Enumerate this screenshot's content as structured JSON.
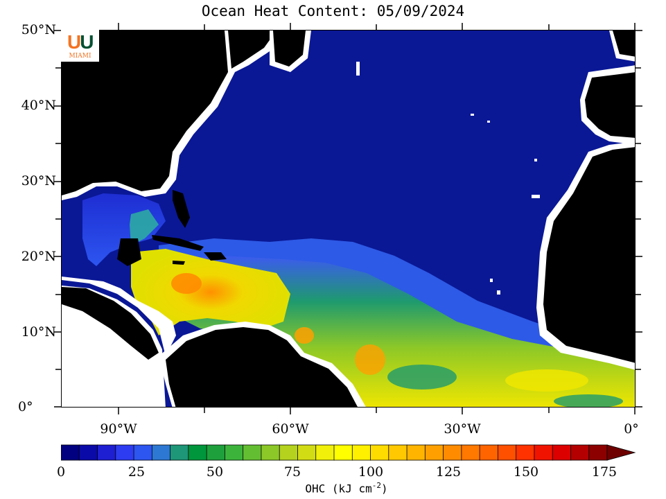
{
  "title": "Ocean Heat Content: 05/09/2024",
  "logo": {
    "letters": "U",
    "text": "MIAMI"
  },
  "lat_labels": [
    "50°N",
    "40°N",
    "30°N",
    "20°N",
    "10°N",
    "0°"
  ],
  "lon_labels": [
    "90°W",
    "60°W",
    "30°W",
    "0°"
  ],
  "colorbar": {
    "ticks": [
      "0",
      "25",
      "50",
      "75",
      "100",
      "125",
      "150",
      "175"
    ],
    "title": "OHC (kJ cm",
    "title_sup": "-2",
    "title_end": ")",
    "colors": [
      "#000080",
      "#0a0aa8",
      "#1e1ed2",
      "#2d3cf0",
      "#2d55f0",
      "#2d78d2",
      "#1e9678",
      "#00963c",
      "#1ea03c",
      "#3cb43c",
      "#64be32",
      "#8cc828",
      "#b4d21e",
      "#d2dc14",
      "#f0f00a",
      "#ffff00",
      "#fff000",
      "#ffdc00",
      "#ffc800",
      "#ffb400",
      "#ffa000",
      "#ff8c00",
      "#ff7800",
      "#ff6400",
      "#ff5000",
      "#ff3200",
      "#f01400",
      "#dc0000",
      "#b40000",
      "#8c0000"
    ],
    "arrow_color": "#6e0000"
  },
  "colors": {
    "land": "#000000",
    "coast": "#ffffff",
    "deep_blue": "#0a1896"
  }
}
